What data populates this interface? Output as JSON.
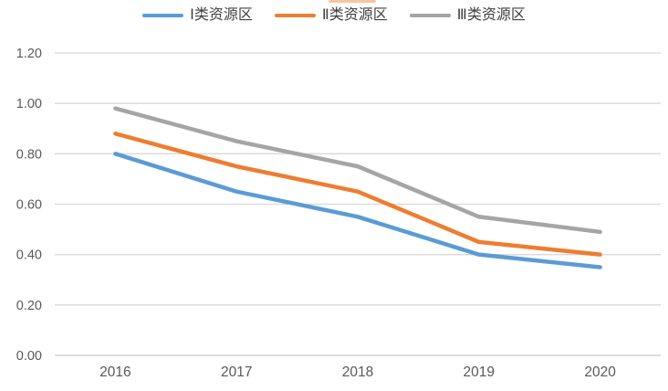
{
  "chart_data": {
    "type": "line",
    "categories": [
      "2016",
      "2017",
      "2018",
      "2019",
      "2020"
    ],
    "series": [
      {
        "name": "Ⅰ类资源区",
        "color": "#5B9BD5",
        "values": [
          0.8,
          0.65,
          0.55,
          0.4,
          0.35
        ]
      },
      {
        "name": "Ⅱ类资源区",
        "color": "#ED7D31",
        "values": [
          0.88,
          0.75,
          0.65,
          0.45,
          0.4
        ]
      },
      {
        "name": "Ⅲ类资源区",
        "color": "#A5A5A5",
        "values": [
          0.98,
          0.85,
          0.75,
          0.55,
          0.49
        ]
      }
    ],
    "y_ticks": [
      {
        "value": 1.2,
        "label": "1.20"
      },
      {
        "value": 1.0,
        "label": "1.00"
      },
      {
        "value": 0.8,
        "label": "0.80"
      },
      {
        "value": 0.6,
        "label": "0.60"
      },
      {
        "value": 0.4,
        "label": "0.40"
      },
      {
        "value": 0.2,
        "label": "0.20"
      },
      {
        "value": 0.0,
        "label": "0.00"
      }
    ],
    "ylim": [
      0.0,
      1.2
    ],
    "grid": true,
    "legend_position": "top",
    "colors": {
      "gridline": "#D9D9D9",
      "axis_line": "#C6C6C6",
      "axis_label": "#595959",
      "legend_text": "#404040",
      "background": "#FFFFFF"
    }
  }
}
